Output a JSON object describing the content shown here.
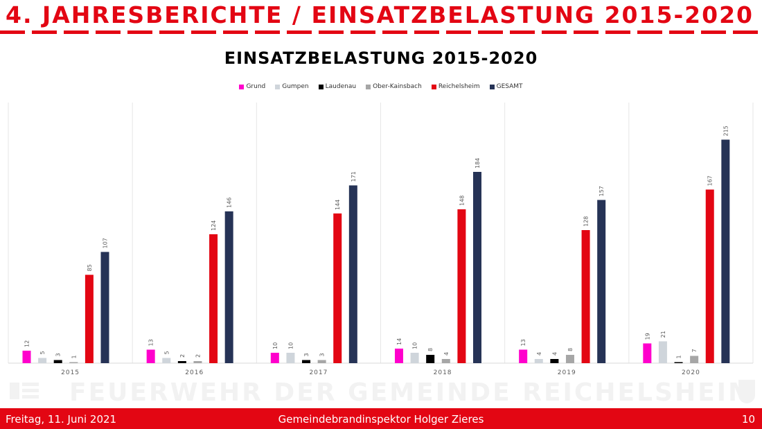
{
  "slide": {
    "title": "4. JAHRESBERICHTE / EINSATZBELASTUNG 2015-2020",
    "watermark": "FEUERWEHR DER GEMEINDE REICHELSHEIM",
    "footer_date": "Freitag, 11. Juni 2021",
    "footer_presenter": "Gemeindebrandinspektor Holger Zieres",
    "page_number": "10"
  },
  "chart_data": {
    "type": "bar",
    "title": "EINSATZBELASTUNG 2015-2020",
    "categories": [
      "2015",
      "2016",
      "2017",
      "2018",
      "2019",
      "2020"
    ],
    "series": [
      {
        "name": "Grund",
        "color": "#ff00cc",
        "values": [
          12,
          13,
          10,
          14,
          13,
          19
        ]
      },
      {
        "name": "Gumpen",
        "color": "#cfd5db",
        "values": [
          5,
          5,
          10,
          10,
          4,
          21
        ]
      },
      {
        "name": "Laudenau",
        "color": "#000000",
        "values": [
          3,
          2,
          3,
          8,
          4,
          1
        ]
      },
      {
        "name": "Ober-Kainsbach",
        "color": "#a6a6a6",
        "values": [
          1,
          2,
          3,
          4,
          8,
          7
        ]
      },
      {
        "name": "Reichelsheim",
        "color": "#e30613",
        "values": [
          85,
          124,
          144,
          148,
          128,
          167
        ]
      },
      {
        "name": "GESAMT",
        "color": "#263356",
        "values": [
          107,
          146,
          171,
          184,
          157,
          215
        ]
      }
    ],
    "ylim": [
      0,
      250
    ],
    "legend_position": "top",
    "data_labels": true,
    "grid": false
  }
}
